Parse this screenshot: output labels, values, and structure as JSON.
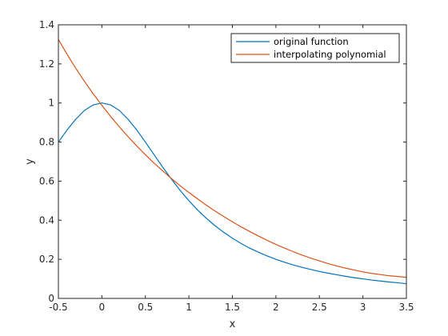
{
  "chart_data": {
    "type": "line",
    "xlabel": "x",
    "ylabel": "y",
    "xlim": [
      -0.5,
      3.5
    ],
    "ylim": [
      0,
      1.4
    ],
    "xticks": [
      -0.5,
      0,
      0.5,
      1,
      1.5,
      2,
      2.5,
      3,
      3.5
    ],
    "xtick_labels": [
      "-0.5",
      "0",
      "0.5",
      "1",
      "1.5",
      "2",
      "2.5",
      "3",
      "3.5"
    ],
    "yticks": [
      0,
      0.2,
      0.4,
      0.6,
      0.8,
      1,
      1.2,
      1.4
    ],
    "ytick_labels": [
      "0",
      "0.2",
      "0.4",
      "0.6",
      "0.8",
      "1",
      "1.2",
      "1.4"
    ],
    "grid": false,
    "legend_position": "top-right",
    "series": [
      {
        "name": "original function",
        "color": "#0072BD",
        "x": [
          -0.5,
          -0.4,
          -0.3,
          -0.2,
          -0.1,
          0,
          0.1,
          0.2,
          0.3,
          0.4,
          0.5,
          0.6,
          0.7,
          0.8,
          0.9,
          1.0,
          1.1,
          1.2,
          1.3,
          1.4,
          1.5,
          1.6,
          1.7,
          1.8,
          1.9,
          2.0,
          2.1,
          2.2,
          2.3,
          2.4,
          2.5,
          2.6,
          2.7,
          2.8,
          2.9,
          3.0,
          3.1,
          3.2,
          3.3,
          3.4,
          3.5
        ],
        "y": [
          0.8,
          0.862,
          0.917,
          0.962,
          0.99,
          1.0,
          0.99,
          0.962,
          0.917,
          0.862,
          0.8,
          0.735,
          0.671,
          0.61,
          0.552,
          0.5,
          0.452,
          0.41,
          0.372,
          0.338,
          0.308,
          0.281,
          0.257,
          0.236,
          0.217,
          0.2,
          0.185,
          0.171,
          0.159,
          0.148,
          0.138,
          0.129,
          0.121,
          0.113,
          0.106,
          0.1,
          0.094,
          0.089,
          0.084,
          0.08,
          0.075
        ]
      },
      {
        "name": "interpolating polynomial",
        "color": "#D95319",
        "x": [
          -0.5,
          -0.4,
          -0.3,
          -0.2,
          -0.1,
          0,
          0.1,
          0.2,
          0.3,
          0.4,
          0.5,
          0.6,
          0.7,
          0.8,
          0.9,
          1.0,
          1.1,
          1.2,
          1.3,
          1.4,
          1.5,
          1.6,
          1.7,
          1.8,
          1.9,
          2.0,
          2.1,
          2.2,
          2.3,
          2.4,
          2.5,
          2.6,
          2.7,
          2.8,
          2.9,
          3.0,
          3.1,
          3.2,
          3.3,
          3.4,
          3.5
        ],
        "y": [
          1.325,
          1.249,
          1.177,
          1.11,
          1.047,
          0.988,
          0.931,
          0.878,
          0.828,
          0.78,
          0.735,
          0.692,
          0.652,
          0.613,
          0.576,
          0.542,
          0.509,
          0.477,
          0.447,
          0.419,
          0.392,
          0.366,
          0.342,
          0.319,
          0.297,
          0.276,
          0.257,
          0.239,
          0.222,
          0.206,
          0.192,
          0.178,
          0.166,
          0.155,
          0.145,
          0.136,
          0.128,
          0.122,
          0.116,
          0.112,
          0.108
        ]
      }
    ]
  }
}
